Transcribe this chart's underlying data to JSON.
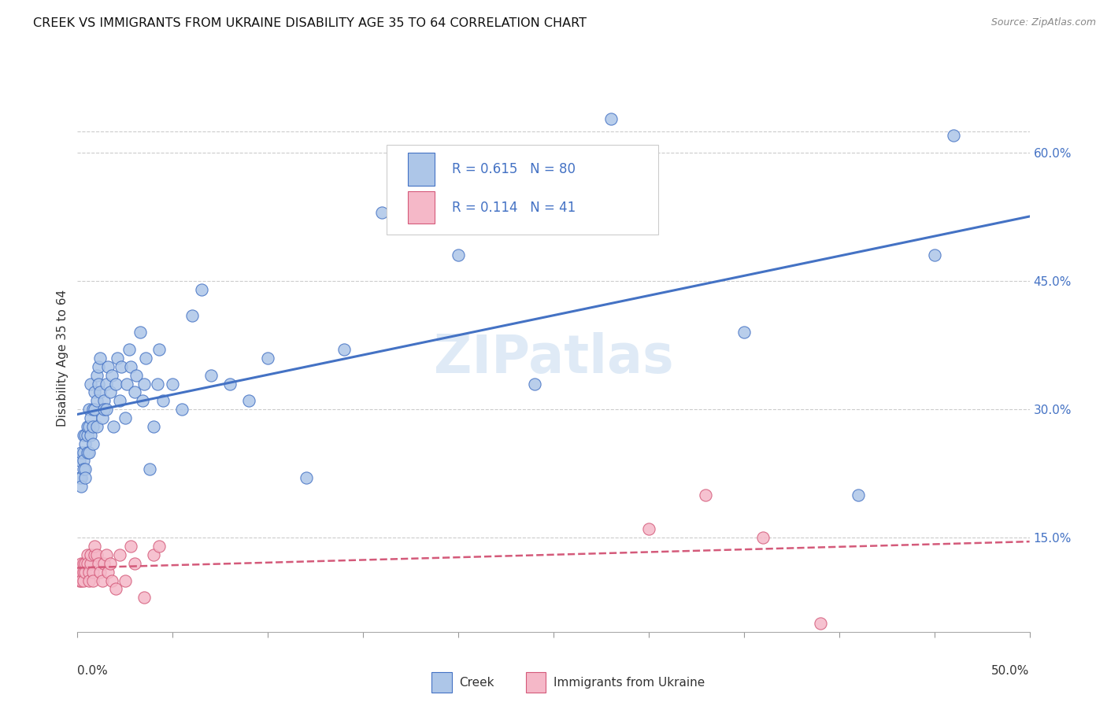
{
  "title": "CREEK VS IMMIGRANTS FROM UKRAINE DISABILITY AGE 35 TO 64 CORRELATION CHART",
  "source": "Source: ZipAtlas.com",
  "ylabel": "Disability Age 35 to 64",
  "right_yticks": [
    0.15,
    0.3,
    0.45,
    0.6
  ],
  "right_yticklabels": [
    "15.0%",
    "30.0%",
    "45.0%",
    "60.0%"
  ],
  "xmin": 0.0,
  "xmax": 0.5,
  "ymin": 0.04,
  "ymax": 0.68,
  "legend_creek_R": "0.615",
  "legend_creek_N": "80",
  "legend_ukraine_R": "0.114",
  "legend_ukraine_N": "41",
  "creek_color": "#adc6e8",
  "creek_line_color": "#4472c4",
  "ukraine_color": "#f5b8c8",
  "ukraine_line_color": "#d45a7a",
  "background_color": "#ffffff",
  "watermark": "ZIPatlas",
  "creek_scatter_x": [
    0.001,
    0.001,
    0.002,
    0.002,
    0.002,
    0.003,
    0.003,
    0.003,
    0.003,
    0.004,
    0.004,
    0.004,
    0.004,
    0.005,
    0.005,
    0.005,
    0.006,
    0.006,
    0.006,
    0.007,
    0.007,
    0.007,
    0.008,
    0.008,
    0.008,
    0.009,
    0.009,
    0.01,
    0.01,
    0.01,
    0.011,
    0.011,
    0.012,
    0.012,
    0.013,
    0.014,
    0.014,
    0.015,
    0.015,
    0.016,
    0.017,
    0.018,
    0.019,
    0.02,
    0.021,
    0.022,
    0.023,
    0.025,
    0.026,
    0.027,
    0.028,
    0.03,
    0.031,
    0.033,
    0.034,
    0.035,
    0.036,
    0.038,
    0.04,
    0.042,
    0.043,
    0.045,
    0.05,
    0.055,
    0.06,
    0.065,
    0.07,
    0.08,
    0.09,
    0.1,
    0.12,
    0.14,
    0.16,
    0.2,
    0.24,
    0.28,
    0.35,
    0.41,
    0.45,
    0.46
  ],
  "creek_scatter_y": [
    0.22,
    0.24,
    0.22,
    0.25,
    0.21,
    0.25,
    0.27,
    0.24,
    0.23,
    0.27,
    0.26,
    0.23,
    0.22,
    0.27,
    0.25,
    0.28,
    0.25,
    0.28,
    0.3,
    0.27,
    0.29,
    0.33,
    0.28,
    0.3,
    0.26,
    0.3,
    0.32,
    0.31,
    0.34,
    0.28,
    0.33,
    0.35,
    0.32,
    0.36,
    0.29,
    0.31,
    0.3,
    0.33,
    0.3,
    0.35,
    0.32,
    0.34,
    0.28,
    0.33,
    0.36,
    0.31,
    0.35,
    0.29,
    0.33,
    0.37,
    0.35,
    0.32,
    0.34,
    0.39,
    0.31,
    0.33,
    0.36,
    0.23,
    0.28,
    0.33,
    0.37,
    0.31,
    0.33,
    0.3,
    0.41,
    0.44,
    0.34,
    0.33,
    0.31,
    0.36,
    0.22,
    0.37,
    0.53,
    0.48,
    0.33,
    0.64,
    0.39,
    0.2,
    0.48,
    0.62
  ],
  "ukraine_scatter_x": [
    0.001,
    0.001,
    0.002,
    0.002,
    0.002,
    0.003,
    0.003,
    0.003,
    0.004,
    0.004,
    0.005,
    0.005,
    0.006,
    0.006,
    0.007,
    0.007,
    0.008,
    0.008,
    0.009,
    0.009,
    0.01,
    0.011,
    0.012,
    0.013,
    0.014,
    0.015,
    0.016,
    0.017,
    0.018,
    0.02,
    0.022,
    0.025,
    0.028,
    0.03,
    0.035,
    0.04,
    0.043,
    0.3,
    0.33,
    0.36,
    0.39
  ],
  "ukraine_scatter_y": [
    0.11,
    0.1,
    0.12,
    0.11,
    0.1,
    0.11,
    0.12,
    0.1,
    0.12,
    0.11,
    0.13,
    0.12,
    0.11,
    0.1,
    0.12,
    0.13,
    0.11,
    0.1,
    0.13,
    0.14,
    0.13,
    0.12,
    0.11,
    0.1,
    0.12,
    0.13,
    0.11,
    0.12,
    0.1,
    0.09,
    0.13,
    0.1,
    0.14,
    0.12,
    0.08,
    0.13,
    0.14,
    0.16,
    0.2,
    0.15,
    0.05
  ]
}
